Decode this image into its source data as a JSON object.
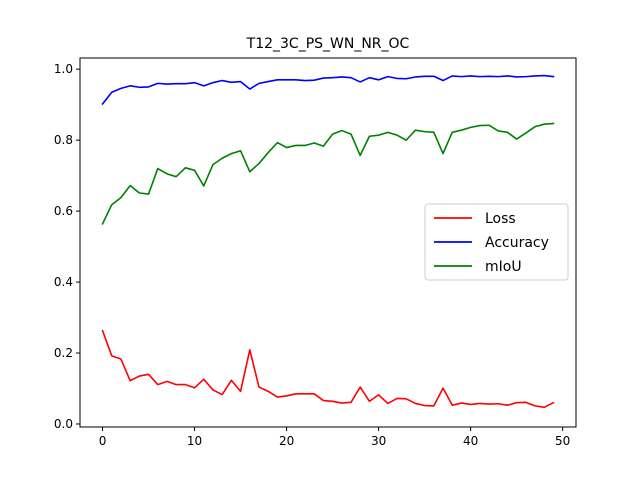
{
  "chart_data": {
    "type": "line",
    "title": "T12_3C_PS_WN_NR_OC",
    "xlabel": "",
    "ylabel": "",
    "xlim": [
      -2.45,
      51.45
    ],
    "ylim": [
      -0.0085,
      1.0315
    ],
    "xticks": [
      0,
      10,
      20,
      30,
      40,
      50
    ],
    "yticks": [
      0.0,
      0.2,
      0.4,
      0.6,
      0.8,
      1.0
    ],
    "xtick_labels": [
      "0",
      "10",
      "20",
      "30",
      "40",
      "50"
    ],
    "ytick_labels": [
      "0.0",
      "0.2",
      "0.4",
      "0.6",
      "0.8",
      "1.0"
    ],
    "grid": false,
    "legend_position": "center-right",
    "x": [
      0,
      1,
      2,
      3,
      4,
      5,
      6,
      7,
      8,
      9,
      10,
      11,
      12,
      13,
      14,
      15,
      16,
      17,
      18,
      19,
      20,
      21,
      22,
      23,
      24,
      25,
      26,
      27,
      28,
      29,
      30,
      31,
      32,
      33,
      34,
      35,
      36,
      37,
      38,
      39,
      40,
      41,
      42,
      43,
      44,
      45,
      46,
      47,
      48,
      49
    ],
    "series": [
      {
        "name": "Loss",
        "color": "#ff0000",
        "values": [
          0.263,
          0.192,
          0.183,
          0.122,
          0.135,
          0.14,
          0.111,
          0.12,
          0.111,
          0.111,
          0.102,
          0.126,
          0.096,
          0.083,
          0.123,
          0.092,
          0.209,
          0.104,
          0.092,
          0.076,
          0.079,
          0.085,
          0.085,
          0.085,
          0.066,
          0.064,
          0.059,
          0.061,
          0.104,
          0.064,
          0.082,
          0.058,
          0.072,
          0.071,
          0.058,
          0.052,
          0.051,
          0.101,
          0.053,
          0.059,
          0.055,
          0.058,
          0.056,
          0.057,
          0.053,
          0.06,
          0.061,
          0.051,
          0.047,
          0.06
        ]
      },
      {
        "name": "Accuracy",
        "color": "#0000ff",
        "values": [
          0.902,
          0.935,
          0.946,
          0.953,
          0.949,
          0.95,
          0.96,
          0.958,
          0.959,
          0.959,
          0.962,
          0.953,
          0.962,
          0.968,
          0.963,
          0.965,
          0.944,
          0.96,
          0.965,
          0.97,
          0.97,
          0.97,
          0.968,
          0.969,
          0.975,
          0.976,
          0.978,
          0.976,
          0.964,
          0.976,
          0.97,
          0.979,
          0.974,
          0.973,
          0.978,
          0.98,
          0.98,
          0.968,
          0.981,
          0.979,
          0.981,
          0.979,
          0.98,
          0.979,
          0.981,
          0.978,
          0.979,
          0.981,
          0.982,
          0.979
        ]
      },
      {
        "name": "mIoU",
        "color": "#008000",
        "values": [
          0.564,
          0.618,
          0.638,
          0.672,
          0.651,
          0.648,
          0.72,
          0.705,
          0.697,
          0.722,
          0.715,
          0.671,
          0.731,
          0.749,
          0.762,
          0.77,
          0.711,
          0.734,
          0.765,
          0.793,
          0.779,
          0.785,
          0.785,
          0.792,
          0.783,
          0.817,
          0.827,
          0.817,
          0.757,
          0.811,
          0.814,
          0.822,
          0.814,
          0.8,
          0.828,
          0.824,
          0.822,
          0.762,
          0.822,
          0.828,
          0.836,
          0.841,
          0.842,
          0.826,
          0.822,
          0.803,
          0.82,
          0.838,
          0.845,
          0.847
        ]
      }
    ]
  }
}
